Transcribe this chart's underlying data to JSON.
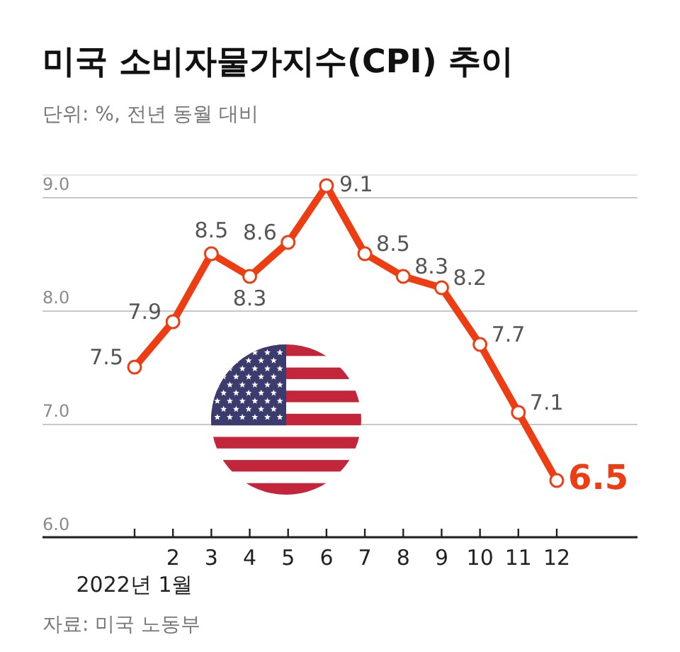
{
  "chart_data": {
    "type": "line",
    "title": "미국 소비자물가지수(CPI) 추이",
    "subtitle": "단위: %, 전년 동월 대비",
    "categories": [
      "2022년 1월",
      "2",
      "3",
      "4",
      "5",
      "6",
      "7",
      "8",
      "9",
      "10",
      "11",
      "12"
    ],
    "values": [
      7.5,
      7.9,
      8.5,
      8.3,
      8.6,
      9.1,
      8.5,
      8.3,
      8.2,
      7.7,
      7.1,
      6.5
    ],
    "color": "#ee3d12",
    "ylim": [
      6,
      9.2
    ],
    "yticks": [
      {
        "value": 6,
        "label": "6.0"
      },
      {
        "value": 7,
        "label": "7.0"
      },
      {
        "value": 8,
        "label": "8.0"
      },
      {
        "value": 9,
        "label": "9.0"
      }
    ],
    "grid": "y",
    "marker": "circle",
    "line_style": "solid",
    "data_labels": true,
    "annotations": [
      "자료: 미국 노동부"
    ]
  }
}
